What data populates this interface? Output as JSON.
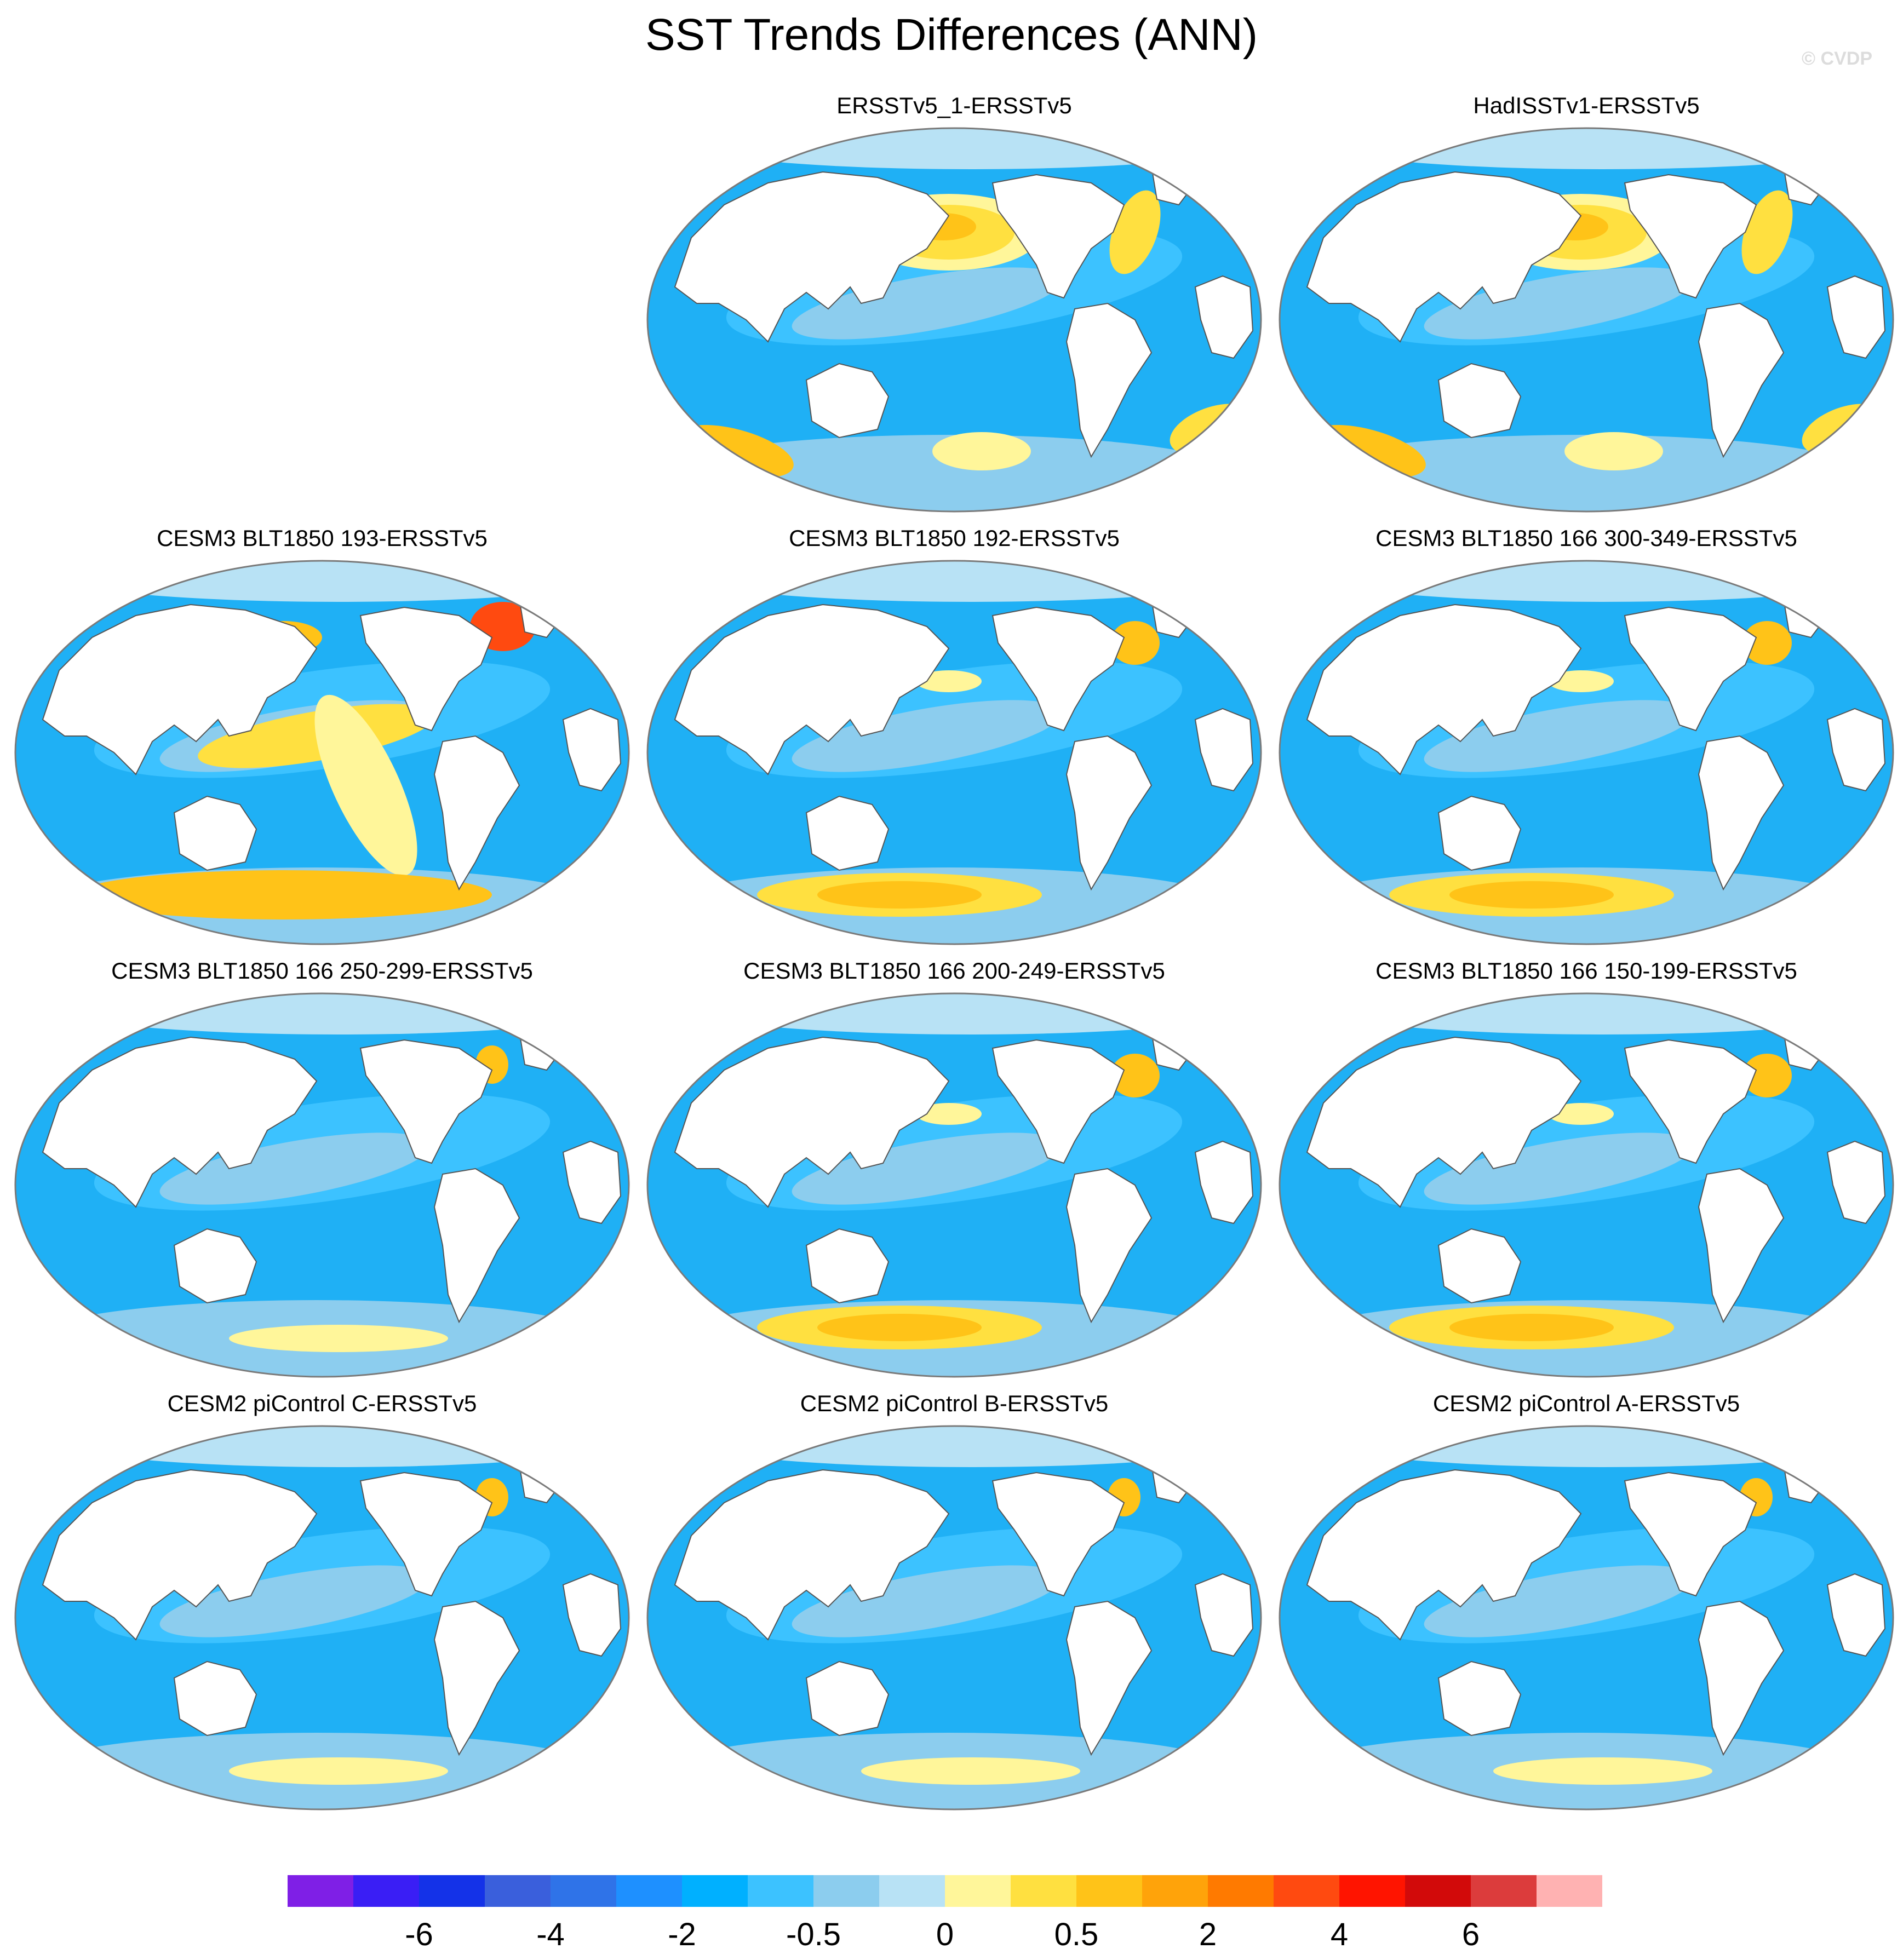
{
  "title": "SST Trends Differences (ANN)",
  "watermark": "© CVDP",
  "panels": [
    {
      "title": "ERSSTv5_1-ERSSTv5",
      "style": "warm_pacific"
    },
    {
      "title": "HadISSTv1-ERSSTv5",
      "style": "warm_pacific"
    },
    {
      "title": "CESM3 BLT1850 193-ERSSTv5",
      "style": "warm_band"
    },
    {
      "title": "CESM3 BLT1850 192-ERSSTv5",
      "style": "warm_south"
    },
    {
      "title": "CESM3 BLT1850 166 300-349-ERSSTv5",
      "style": "warm_south"
    },
    {
      "title": "CESM3 BLT1850 166 250-299-ERSSTv5",
      "style": "cool"
    },
    {
      "title": "CESM3 BLT1850 166 200-249-ERSSTv5",
      "style": "warm_south"
    },
    {
      "title": "CESM3 BLT1850 166 150-199-ERSSTv5",
      "style": "warm_south"
    },
    {
      "title": "CESM2 piControl C-ERSSTv5",
      "style": "cool"
    },
    {
      "title": "CESM2 piControl B-ERSSTv5",
      "style": "cool"
    },
    {
      "title": "CESM2 piControl A-ERSSTv5",
      "style": "cool"
    }
  ],
  "colorbar": {
    "colors": [
      "#7f1fe6",
      "#3a1ef5",
      "#1432e8",
      "#3a5fdc",
      "#2f73e8",
      "#1e90ff",
      "#00b0ff",
      "#3cc2ff",
      "#8ccdee",
      "#b8e2f5",
      "#fff69a",
      "#ffe040",
      "#ffc318",
      "#ffa30a",
      "#ff7a00",
      "#ff4a10",
      "#ff1400",
      "#d20a0a",
      "#dc3c3c",
      "#ffb2b2"
    ],
    "labels": [
      "-6",
      "-4",
      "-2",
      "-0.5",
      "0",
      "0.5",
      "2",
      "4",
      "6"
    ]
  }
}
